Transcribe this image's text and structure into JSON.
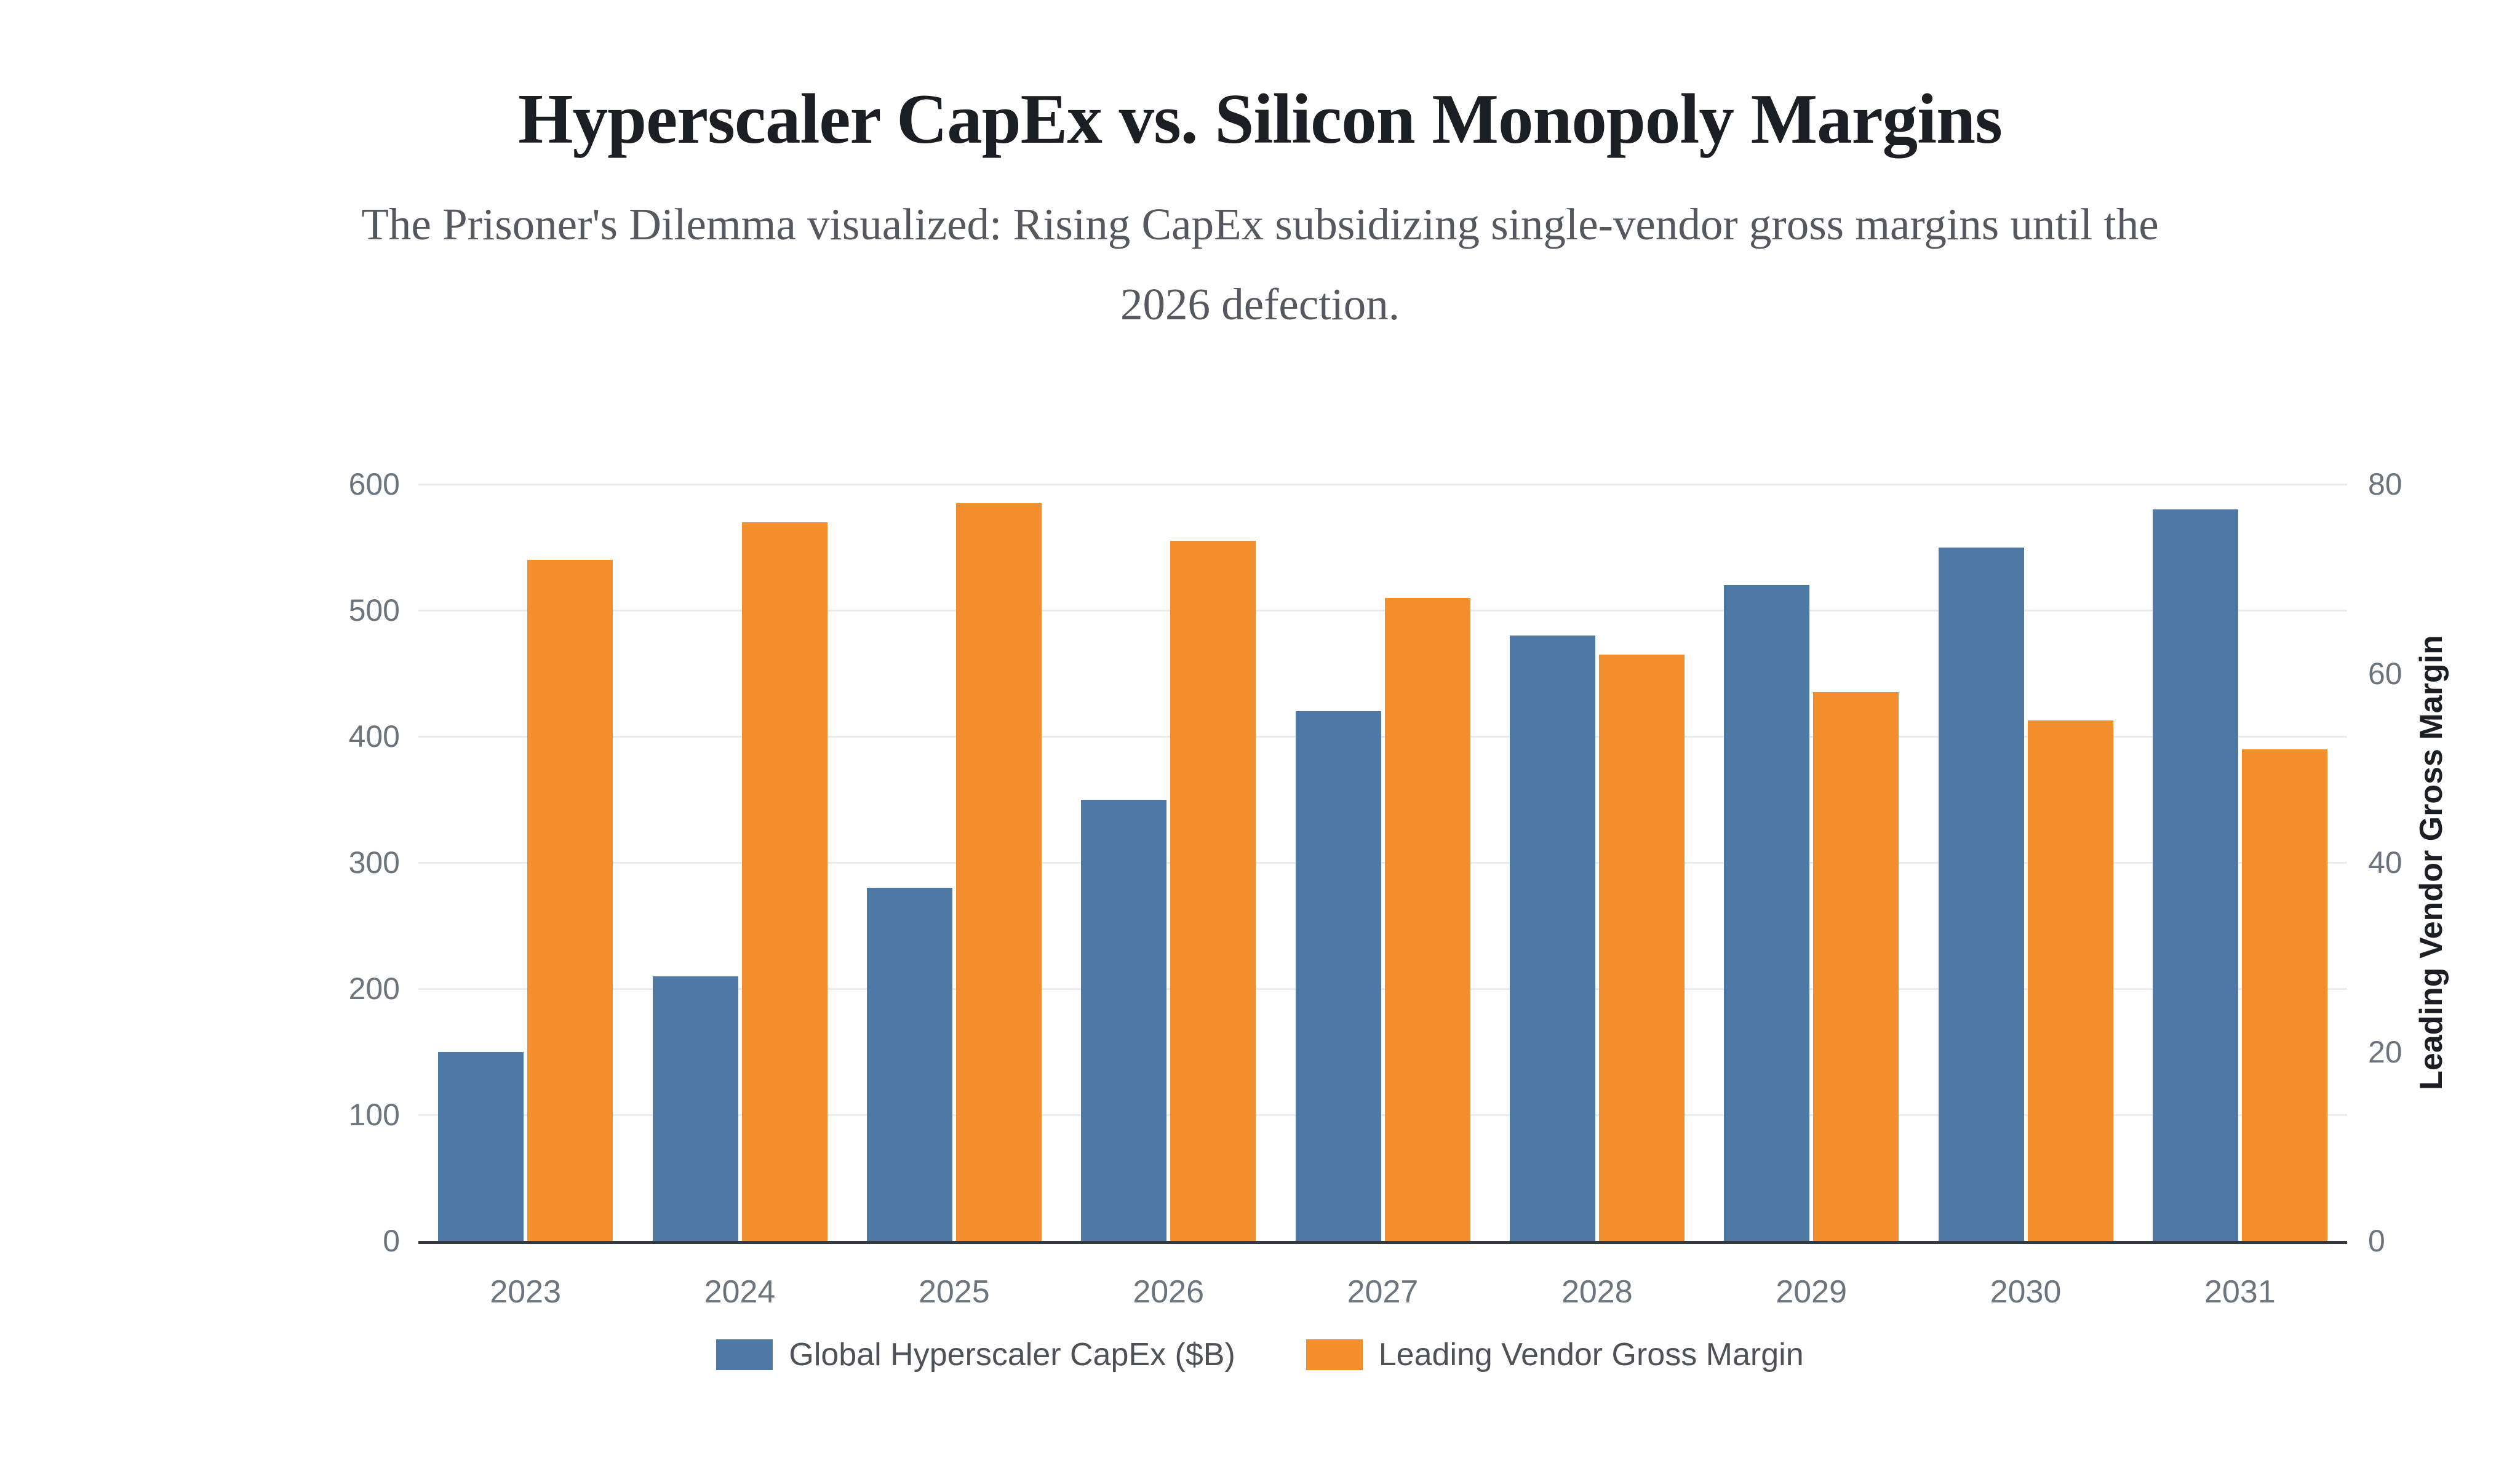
{
  "header": {
    "title": "Hyperscaler CapEx vs. Silicon Monopoly Margins",
    "subtitle": "The Prisoner's Dilemma visualized: Rising CapEx subsidizing single-vendor gross margins until the\n2026 defection."
  },
  "chart_data": {
    "type": "bar",
    "title": "Hyperscaler CapEx vs. Silicon Monopoly Margins",
    "subtitle": "The Prisoner's Dilemma visualized: Rising CapEx subsidizing single-vendor gross margins until the 2026 defection.",
    "categories": [
      "2023",
      "2024",
      "2025",
      "2026",
      "2027",
      "2028",
      "2029",
      "2030",
      "2031"
    ],
    "series": [
      {
        "name": "Global Hyperscaler CapEx ($B)",
        "axis": "left",
        "color": "#4e79a7",
        "values": [
          150,
          210,
          280,
          350,
          420,
          480,
          520,
          550,
          580
        ]
      },
      {
        "name": "Leading Vendor Gross Margin",
        "axis": "right",
        "color": "#f28e2b",
        "values": [
          72,
          76,
          78,
          74,
          68,
          62,
          58,
          55,
          52
        ]
      }
    ],
    "left_axis": {
      "ticks": [
        0,
        100,
        200,
        300,
        400,
        500,
        600
      ],
      "range": [
        0,
        600
      ],
      "label": ""
    },
    "right_axis": {
      "ticks": [
        0,
        20,
        40,
        60,
        80
      ],
      "range": [
        0,
        80
      ],
      "label": "Leading Vendor Gross Margin"
    },
    "grid": true,
    "legend_position": "bottom",
    "background": "#ffffff",
    "gridline_color": "#e9ecef",
    "axis_line_color": "#343a40",
    "tick_label_color": "#6c757d"
  }
}
